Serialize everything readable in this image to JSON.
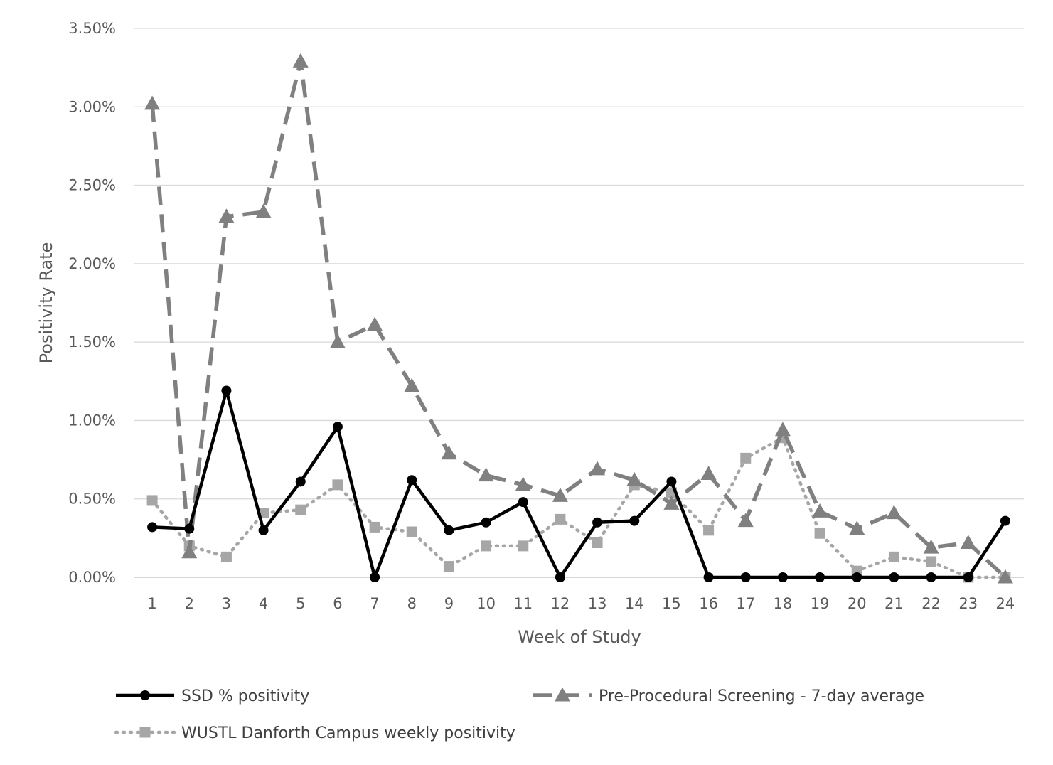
{
  "chart_data": {
    "type": "line",
    "title": "",
    "xlabel": "Week of Study",
    "ylabel": "Positivity Rate",
    "x": [
      1,
      2,
      3,
      4,
      5,
      6,
      7,
      8,
      9,
      10,
      11,
      12,
      13,
      14,
      15,
      16,
      17,
      18,
      19,
      20,
      21,
      22,
      23,
      24
    ],
    "ylim": [
      0,
      0.035
    ],
    "y_ticks": [
      "0.00%",
      "0.50%",
      "1.00%",
      "1.50%",
      "2.00%",
      "2.50%",
      "3.00%",
      "3.50%"
    ],
    "grid": "horizontal",
    "legend_position": "bottom",
    "series": [
      {
        "name": "SSD % positivity",
        "color": "#000000",
        "line_style": "solid",
        "marker": "circle",
        "values": [
          0.0032,
          0.0031,
          0.0119,
          0.003,
          0.0061,
          0.0096,
          0.0,
          0.0062,
          0.003,
          0.0035,
          0.0048,
          0.0,
          0.0035,
          0.0036,
          0.0061,
          0.0,
          0.0,
          0.0,
          0.0,
          0.0,
          0.0,
          0.0,
          0.0,
          0.0036
        ]
      },
      {
        "name": "Pre-Procedural Screening - 7-day average",
        "color": "#808080",
        "line_style": "dashed",
        "marker": "triangle",
        "values": [
          0.0302,
          0.0016,
          0.023,
          0.0233,
          0.0329,
          0.015,
          0.0161,
          0.0122,
          0.0079,
          0.0065,
          0.0059,
          0.0052,
          0.0069,
          0.0062,
          0.0047,
          0.0066,
          0.0036,
          0.0094,
          0.0042,
          0.0031,
          0.0041,
          0.0019,
          0.0022,
          0.0
        ]
      },
      {
        "name": "WUSTL Danforth Campus weekly positivity",
        "color": "#a6a6a6",
        "line_style": "dotted",
        "marker": "square",
        "values": [
          0.0049,
          0.002,
          0.0013,
          0.0041,
          0.0043,
          0.0059,
          0.0032,
          0.0029,
          0.0007,
          0.002,
          0.002,
          0.0037,
          0.0022,
          0.0059,
          0.0054,
          0.003,
          0.0076,
          0.0089,
          0.0028,
          0.0004,
          0.0013,
          0.001,
          0.0,
          0.0
        ]
      }
    ]
  }
}
